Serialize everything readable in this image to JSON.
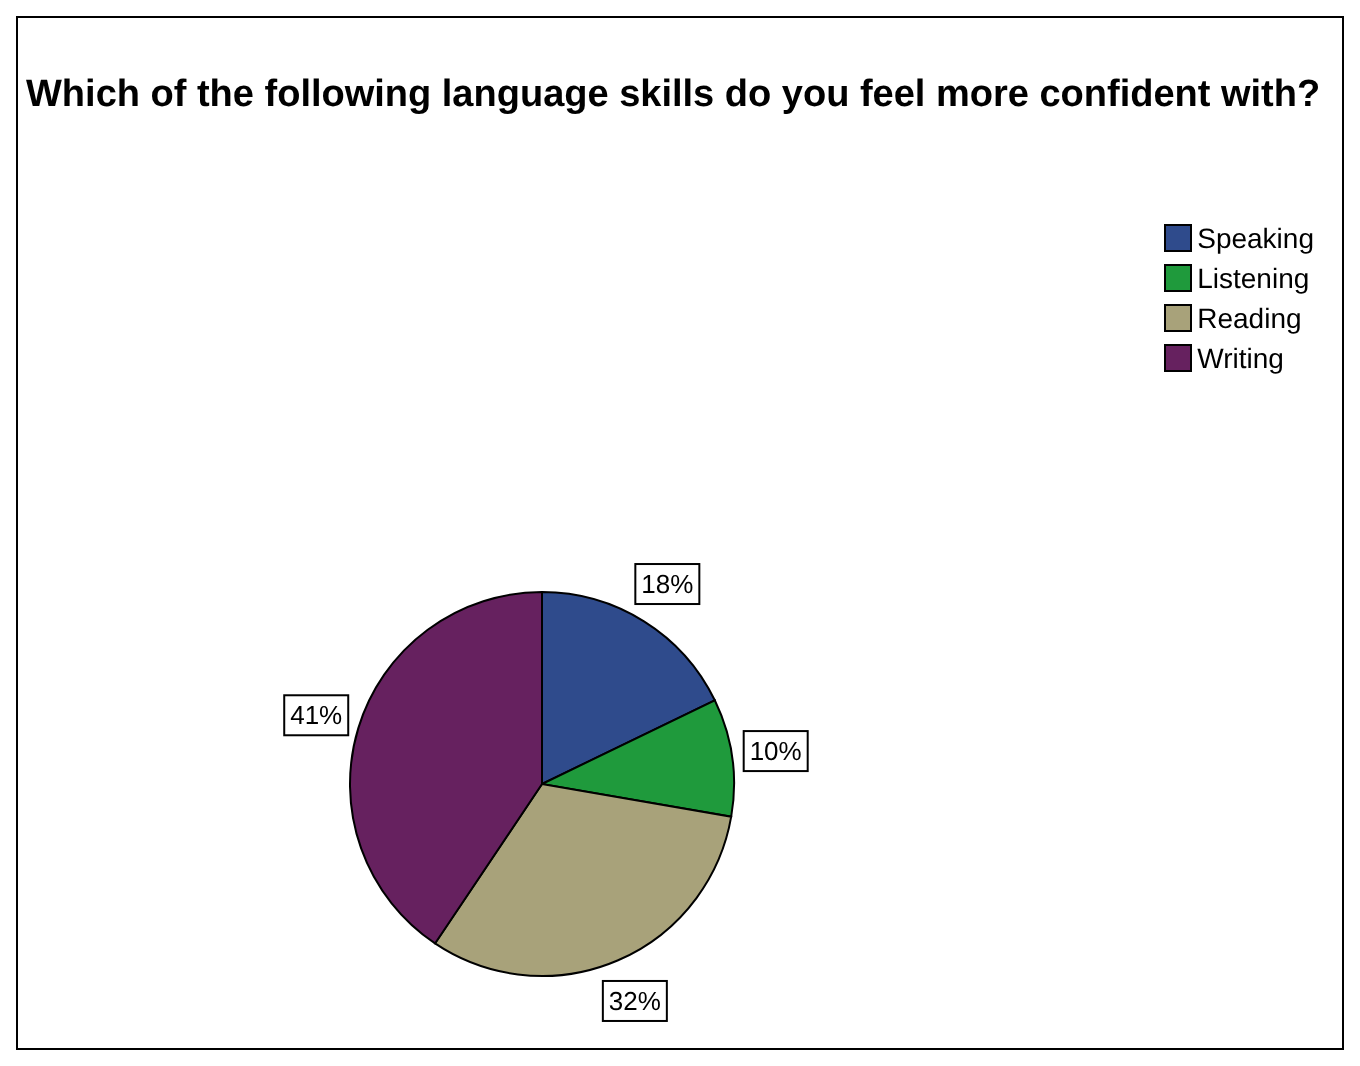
{
  "chart_data": {
    "type": "pie",
    "title": "Which of the following language skills do you feel more confident with?",
    "categories": [
      "Speaking",
      "Listening",
      "Reading",
      "Writing"
    ],
    "values": [
      18,
      10,
      32,
      41
    ],
    "value_labels": [
      "18%",
      "10%",
      "32%",
      "41%"
    ],
    "colors": [
      "#2f4b8c",
      "#1f9a3c",
      "#a8a27a",
      "#66215f"
    ],
    "legend": "top right"
  }
}
